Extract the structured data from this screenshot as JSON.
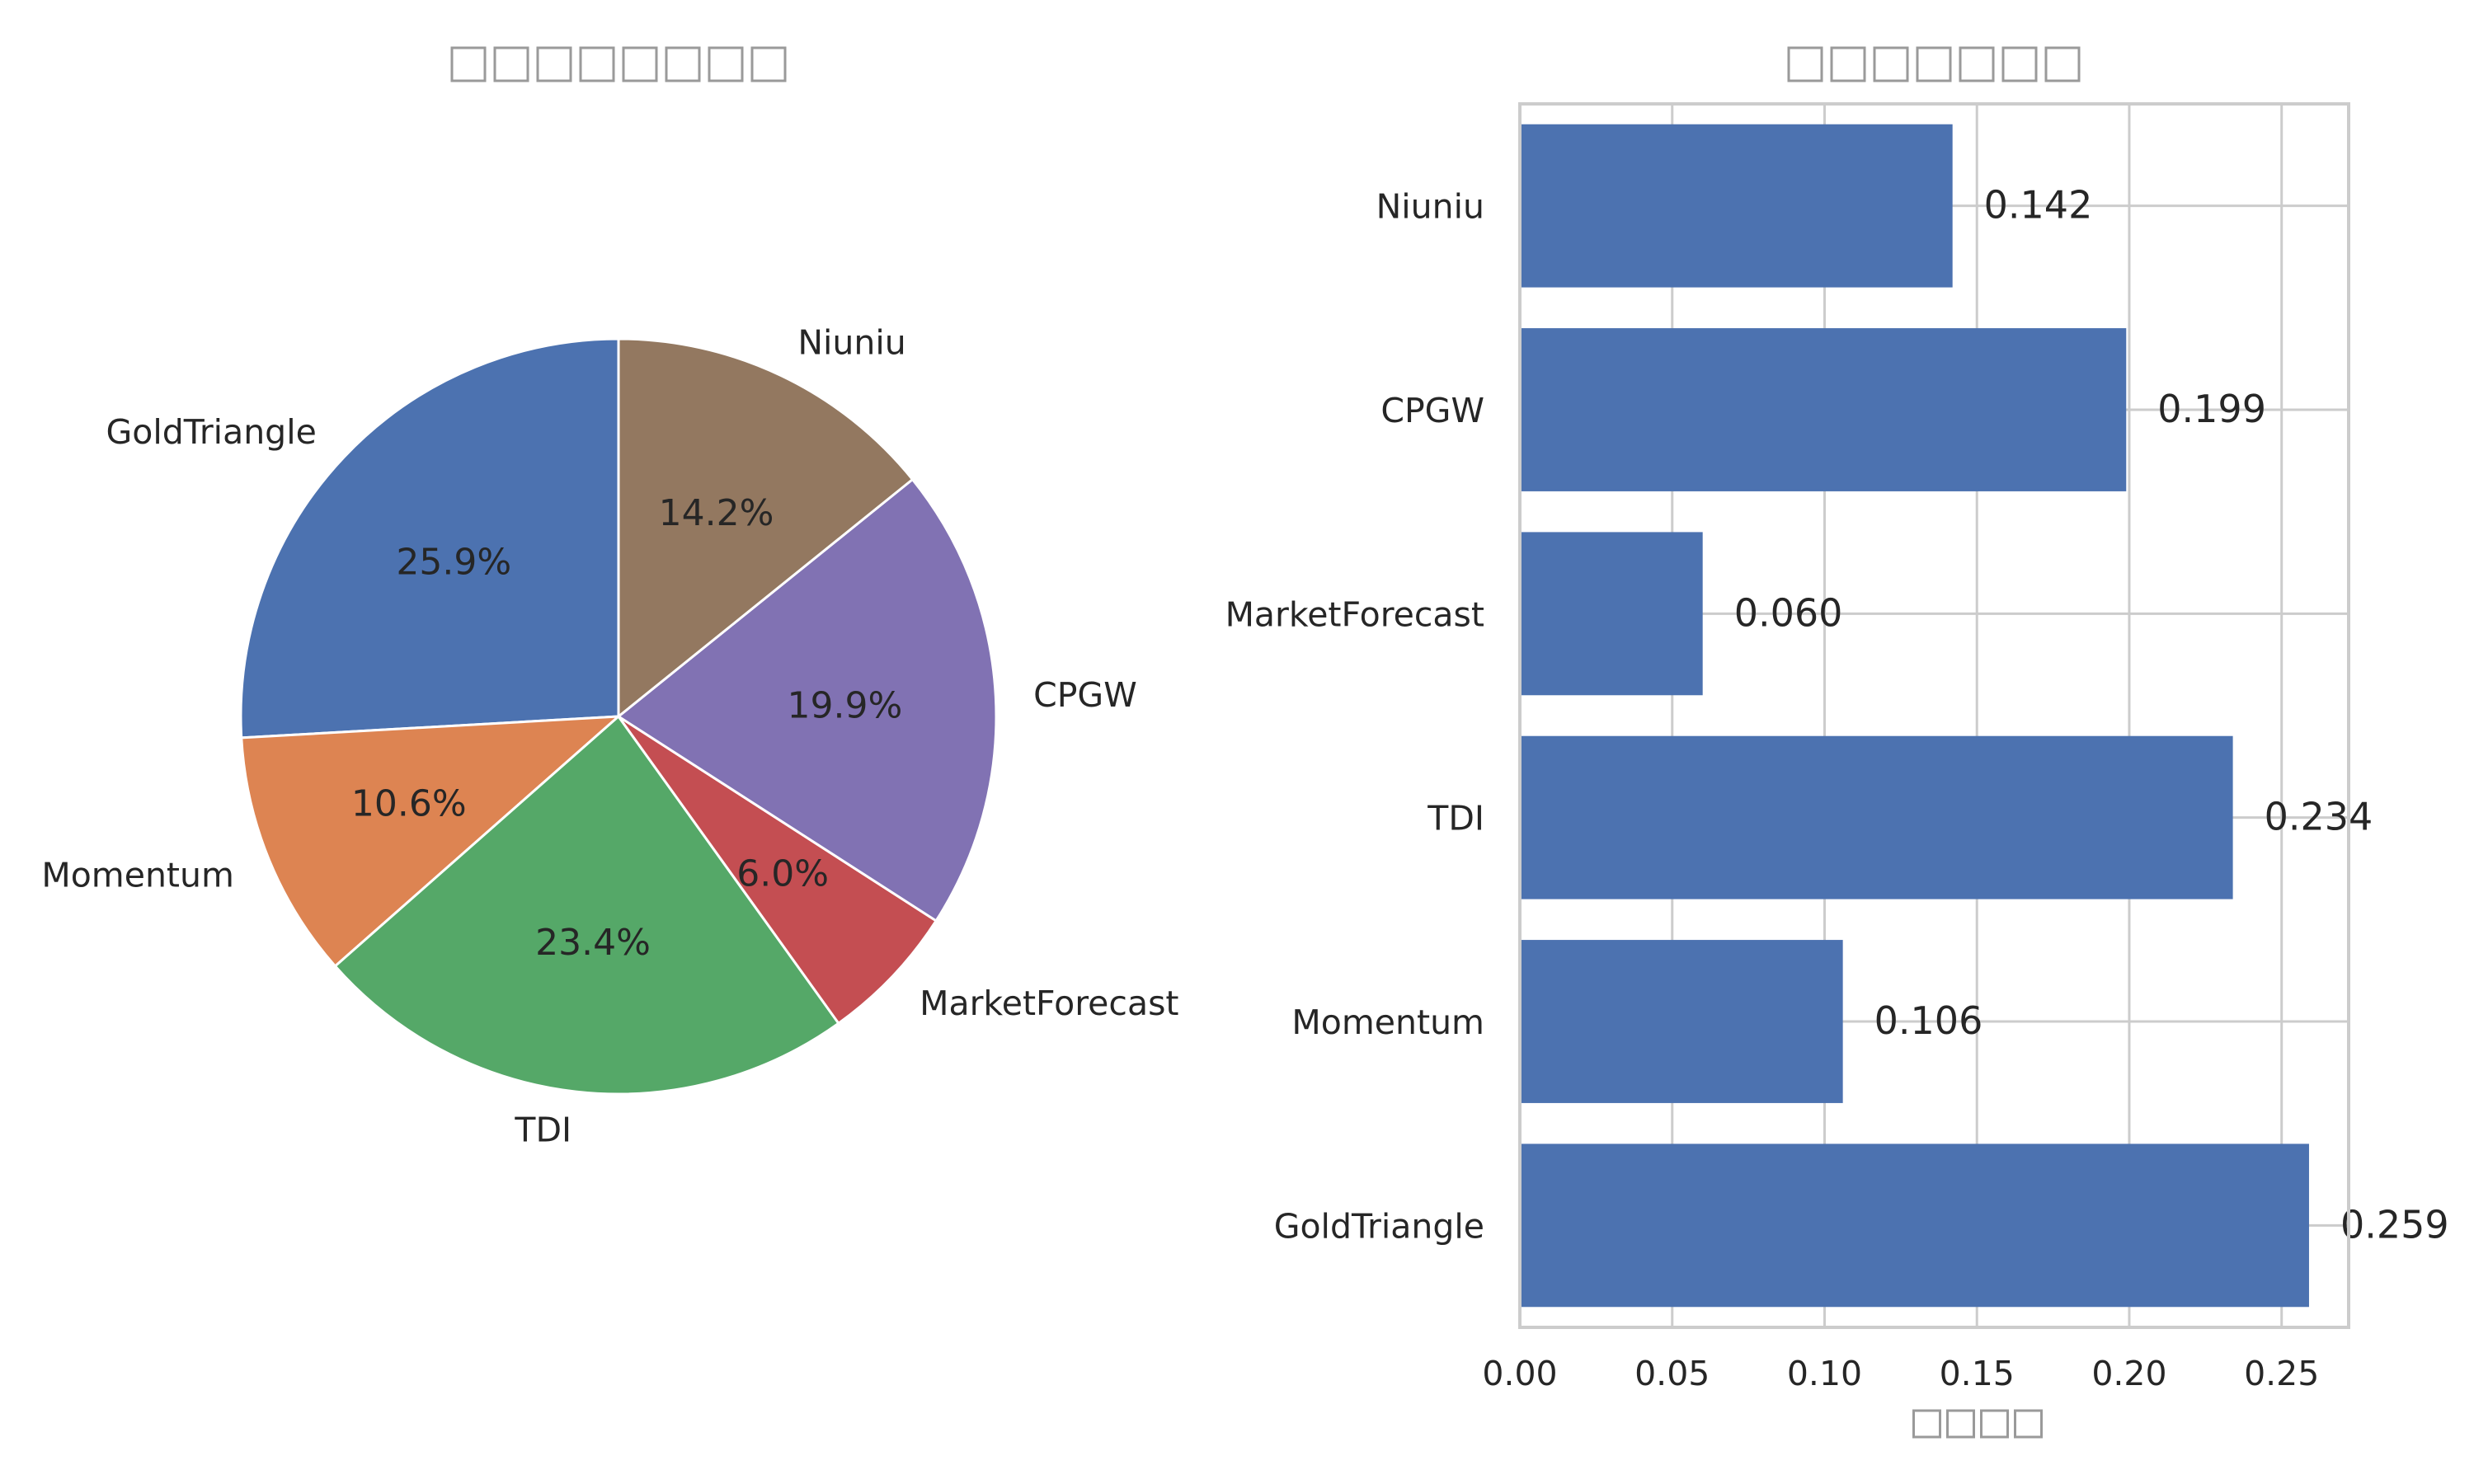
{
  "chart_data": [
    {
      "type": "pie",
      "title": "□□□□□□□□",
      "start_angle_deg": 90,
      "direction": "counterclockwise",
      "slices": [
        {
          "label": "GoldTriangle",
          "value": 0.259,
          "pct_label": "25.9%",
          "color": "#4c72b0"
        },
        {
          "label": "Momentum",
          "value": 0.106,
          "pct_label": "10.6%",
          "color": "#dd8452"
        },
        {
          "label": "TDI",
          "value": 0.234,
          "pct_label": "23.4%",
          "color": "#55a868"
        },
        {
          "label": "MarketForecast",
          "value": 0.06,
          "pct_label": "6.0%",
          "color": "#c44e52"
        },
        {
          "label": "CPGW",
          "value": 0.199,
          "pct_label": "19.9%",
          "color": "#8172b3"
        },
        {
          "label": "Niuniu",
          "value": 0.142,
          "pct_label": "14.2%",
          "color": "#937860"
        }
      ]
    },
    {
      "type": "bar",
      "orientation": "horizontal",
      "title": "□□□□□□□",
      "xlabel": "□□□□",
      "ylabel": "",
      "xlim": [
        0,
        0.272
      ],
      "xticks": [
        0.0,
        0.05,
        0.1,
        0.15,
        0.2,
        0.25
      ],
      "xtick_labels": [
        "0.00",
        "0.05",
        "0.10",
        "0.15",
        "0.20",
        "0.25"
      ],
      "grid": true,
      "bar_color": "#4c72b0",
      "categories": [
        "GoldTriangle",
        "Momentum",
        "TDI",
        "MarketForecast",
        "CPGW",
        "Niuniu"
      ],
      "values": [
        0.259,
        0.106,
        0.234,
        0.06,
        0.199,
        0.142
      ],
      "value_labels": [
        "0.259",
        "0.106",
        "0.234",
        "0.060",
        "0.199",
        "0.142"
      ]
    }
  ],
  "colors": {
    "text": "#262626",
    "title_gray": "#9a9a9a",
    "grid": "#cccccc",
    "edge": "#ffffff"
  }
}
